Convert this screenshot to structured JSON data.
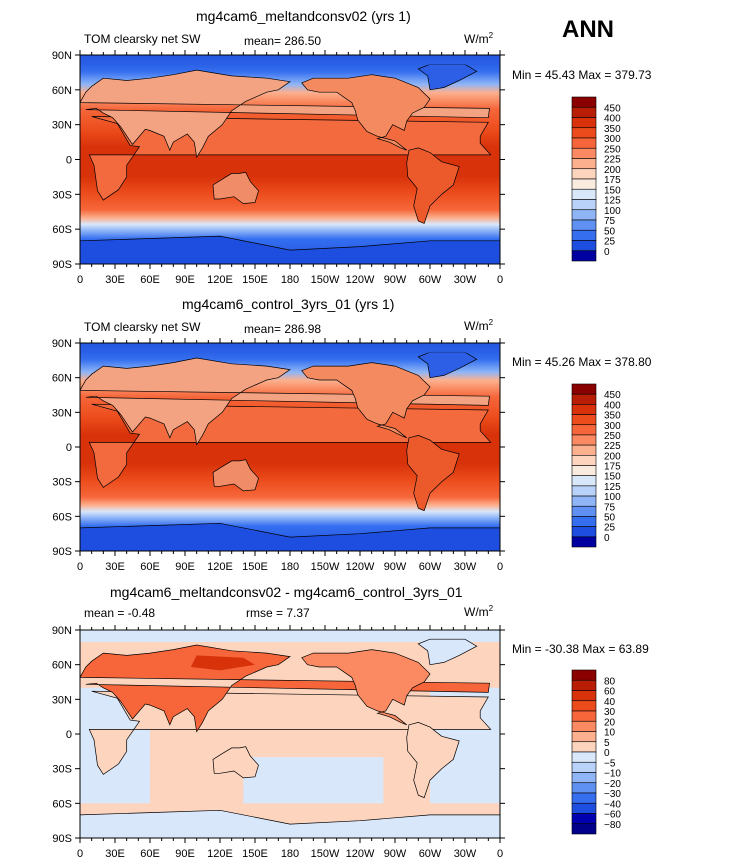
{
  "season": "ANN",
  "units_label": "W/m",
  "units_superscript": "2",
  "lat_labels": [
    "90N",
    "60N",
    "30N",
    "0",
    "30S",
    "60S",
    "90S"
  ],
  "lon_labels": [
    "0",
    "30E",
    "60E",
    "90E",
    "120E",
    "150E",
    "180",
    "150W",
    "120W",
    "90W",
    "60W",
    "30W",
    "0"
  ],
  "panels": [
    {
      "title": "mg4cam6_meltandconsv02 (yrs 1)",
      "left_label": "TOM clearsky net SW",
      "stat1": "mean= 286.50",
      "stat2": "",
      "minmax": "Min =  45.43 Max = 379.73",
      "colorbar_levels": [
        "450",
        "400",
        "350",
        "300",
        "250",
        "225",
        "200",
        "175",
        "150",
        "125",
        "100",
        "75",
        "50",
        "25",
        "0"
      ],
      "colorbar_colors": [
        "#8b0000",
        "#b81e06",
        "#d8320a",
        "#ec4c1c",
        "#f6663a",
        "#fb8a63",
        "#fcb08e",
        "#fdd5bf",
        "#f9ecdf",
        "#d9e7fb",
        "#b8d2fa",
        "#8fb5f7",
        "#5f91f3",
        "#356ff0",
        "#1d4ee0",
        "#0000a0"
      ]
    },
    {
      "title": "mg4cam6_control_3yrs_01 (yrs 1)",
      "left_label": "TOM clearsky net SW",
      "stat1": "mean= 286.98",
      "stat2": "",
      "minmax": "Min =  45.26 Max = 378.80",
      "colorbar_levels": [
        "450",
        "400",
        "350",
        "300",
        "250",
        "225",
        "200",
        "175",
        "150",
        "125",
        "100",
        "75",
        "50",
        "25",
        "0"
      ],
      "colorbar_colors": [
        "#8b0000",
        "#b81e06",
        "#d8320a",
        "#ec4c1c",
        "#f6663a",
        "#fb8a63",
        "#fcb08e",
        "#fdd5bf",
        "#f9ecdf",
        "#d9e7fb",
        "#b8d2fa",
        "#8fb5f7",
        "#5f91f3",
        "#356ff0",
        "#1d4ee0",
        "#0000a0"
      ]
    },
    {
      "title": "mg4cam6_meltandconsv02 - mg4cam6_control_3yrs_01",
      "left_label": "mean =   -0.48",
      "stat1": "rmse =    7.37",
      "stat2": "",
      "minmax": "Min = -30.38 Max =  63.89",
      "colorbar_levels": [
        "80",
        "60",
        "40",
        "30",
        "20",
        "10",
        "5",
        "0",
        "−5",
        "−10",
        "−20",
        "−30",
        "−40",
        "−60",
        "−80"
      ],
      "colorbar_colors": [
        "#8b0000",
        "#b81e06",
        "#d8320a",
        "#ec4c1c",
        "#f6663a",
        "#fb8a63",
        "#fcb08e",
        "#fdd5bf",
        "#d9e7fb",
        "#b8d2fa",
        "#8fb5f7",
        "#5f91f3",
        "#356ff0",
        "#1d4ee0",
        "#0000b0",
        "#00008a"
      ]
    }
  ],
  "chart_data": [
    {
      "type": "heatmap",
      "title": "mg4cam6_meltandconsv02 (yrs 1)",
      "variable": "TOM clearsky net SW",
      "units": "W/m2",
      "mean": 286.5,
      "min": 45.43,
      "max": 379.73,
      "levels": [
        0,
        25,
        50,
        75,
        100,
        125,
        150,
        175,
        200,
        225,
        250,
        300,
        350,
        400,
        450
      ],
      "xlim": [
        0,
        360
      ],
      "ylim": [
        -90,
        90
      ]
    },
    {
      "type": "heatmap",
      "title": "mg4cam6_control_3yrs_01 (yrs 1)",
      "variable": "TOM clearsky net SW",
      "units": "W/m2",
      "mean": 286.98,
      "min": 45.26,
      "max": 378.8,
      "levels": [
        0,
        25,
        50,
        75,
        100,
        125,
        150,
        175,
        200,
        225,
        250,
        300,
        350,
        400,
        450
      ],
      "xlim": [
        0,
        360
      ],
      "ylim": [
        -90,
        90
      ]
    },
    {
      "type": "heatmap",
      "title": "mg4cam6_meltandconsv02 - mg4cam6_control_3yrs_01",
      "units": "W/m2",
      "mean": -0.48,
      "rmse": 7.37,
      "min": -30.38,
      "max": 63.89,
      "levels": [
        -80,
        -60,
        -40,
        -30,
        -20,
        -10,
        -5,
        0,
        5,
        10,
        20,
        30,
        40,
        60,
        80
      ],
      "xlim": [
        0,
        360
      ],
      "ylim": [
        -90,
        90
      ]
    }
  ]
}
